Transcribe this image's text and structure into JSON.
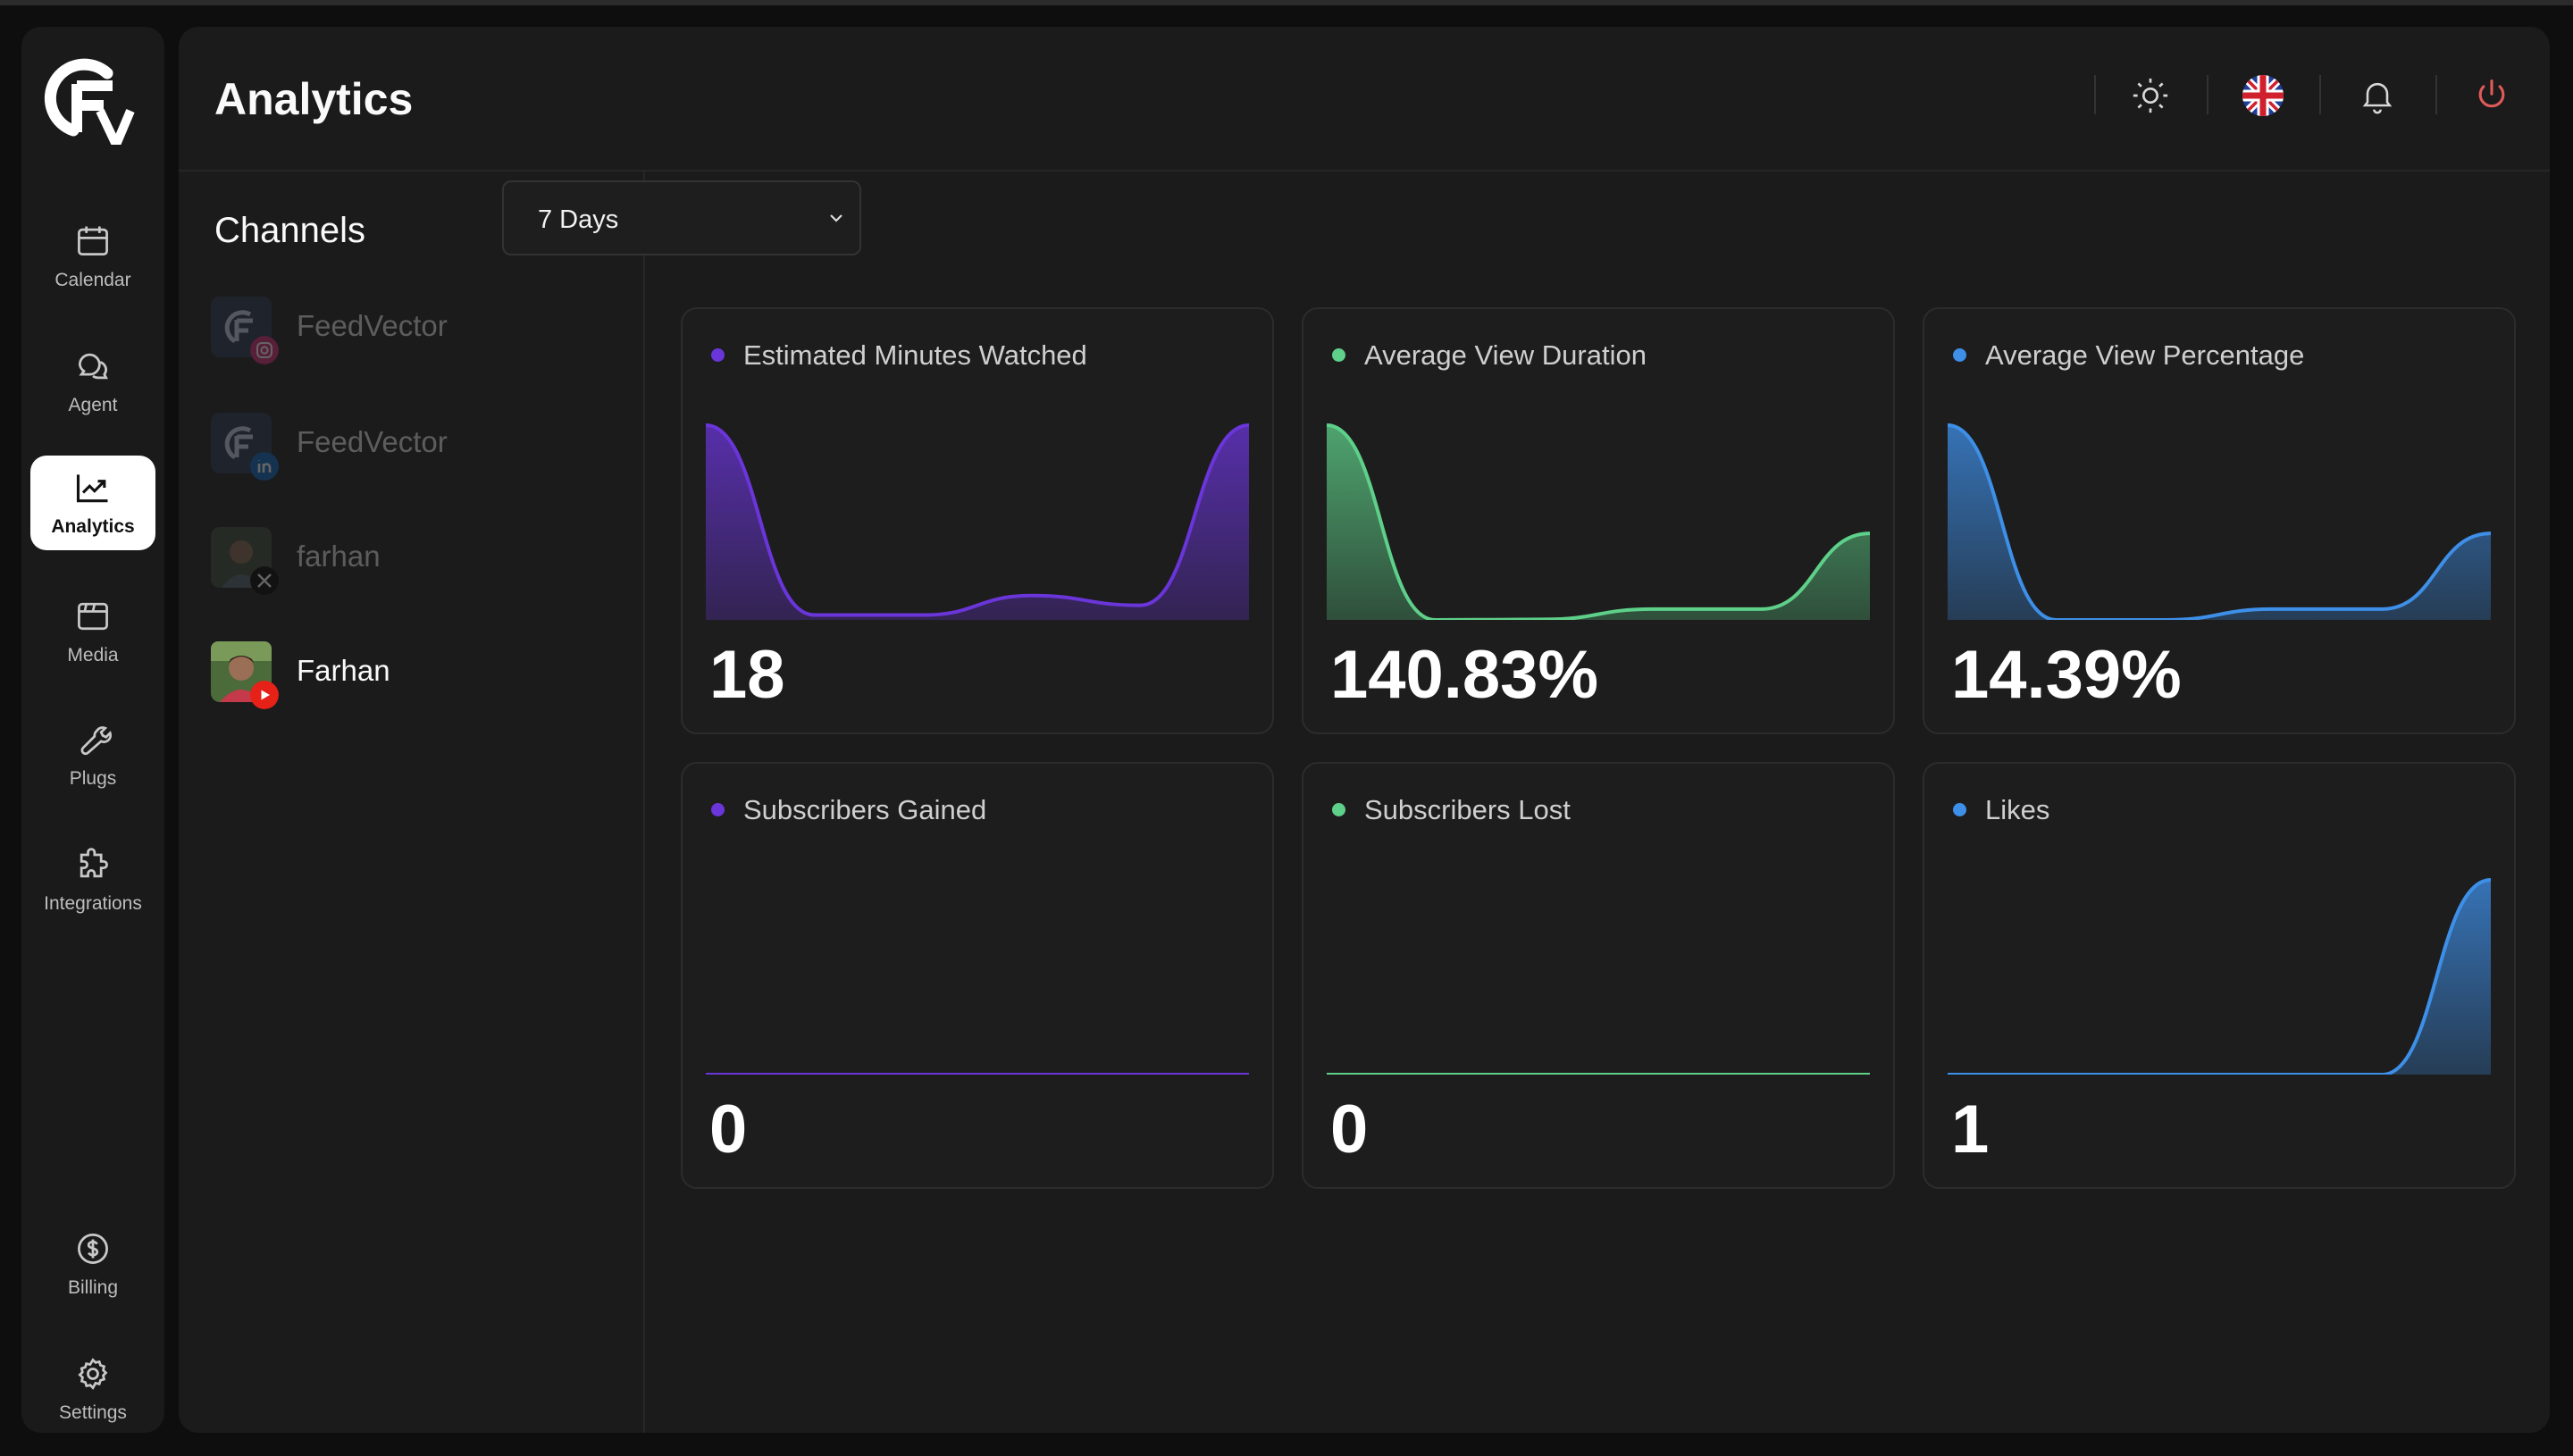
{
  "app": {
    "page_title": "Analytics"
  },
  "colors": {
    "purple": "#6a35d9",
    "green": "#5ed089",
    "blue": "#3e8fe8",
    "power": "#e05a5a",
    "active_nav": "#ffffff"
  },
  "nav": {
    "items": [
      {
        "label": "Calendar",
        "icon": "calendar-icon"
      },
      {
        "label": "Agent",
        "icon": "chat-icon"
      },
      {
        "label": "Analytics",
        "icon": "trending-up-icon",
        "active": true
      },
      {
        "label": "Media",
        "icon": "media-icon"
      },
      {
        "label": "Plugs",
        "icon": "wrench-icon"
      },
      {
        "label": "Integrations",
        "icon": "puzzle-icon"
      }
    ],
    "bottom": [
      {
        "label": "Billing",
        "icon": "dollar-icon"
      },
      {
        "label": "Settings",
        "icon": "gear-icon"
      }
    ]
  },
  "header_icons": [
    "sun-icon",
    "uk-flag-icon",
    "bell-icon",
    "power-icon"
  ],
  "channels": {
    "title": "Channels",
    "items": [
      {
        "name": "FeedVector",
        "platform": "instagram",
        "disabled": true
      },
      {
        "name": "FeedVector",
        "platform": "linkedin",
        "disabled": true
      },
      {
        "name": "farhan",
        "platform": "x",
        "disabled": true
      },
      {
        "name": "Farhan",
        "platform": "youtube",
        "disabled": false
      }
    ]
  },
  "range": {
    "selected": "7 Days"
  },
  "cards": [
    {
      "title": "Estimated Minutes Watched",
      "value": "18",
      "color": "purple",
      "series": [
        20,
        0.5,
        0.5,
        2.5,
        1.5,
        20
      ]
    },
    {
      "title": "Average View Duration",
      "value": "140.83%",
      "color": "green",
      "series": [
        180,
        0,
        0.5,
        10,
        10,
        80
      ]
    },
    {
      "title": "Average View Percentage",
      "value": "14.39%",
      "color": "blue",
      "series": [
        18,
        0,
        0,
        1,
        1,
        8
      ]
    },
    {
      "title": "Subscribers Gained",
      "value": "0",
      "color": "purple",
      "series": [
        0,
        0,
        0,
        0,
        0,
        0
      ]
    },
    {
      "title": "Subscribers Lost",
      "value": "0",
      "color": "green",
      "series": [
        0,
        0,
        0,
        0,
        0,
        0
      ]
    },
    {
      "title": "Likes",
      "value": "1",
      "color": "blue",
      "series": [
        0,
        0,
        0,
        0,
        0,
        1
      ]
    }
  ]
}
